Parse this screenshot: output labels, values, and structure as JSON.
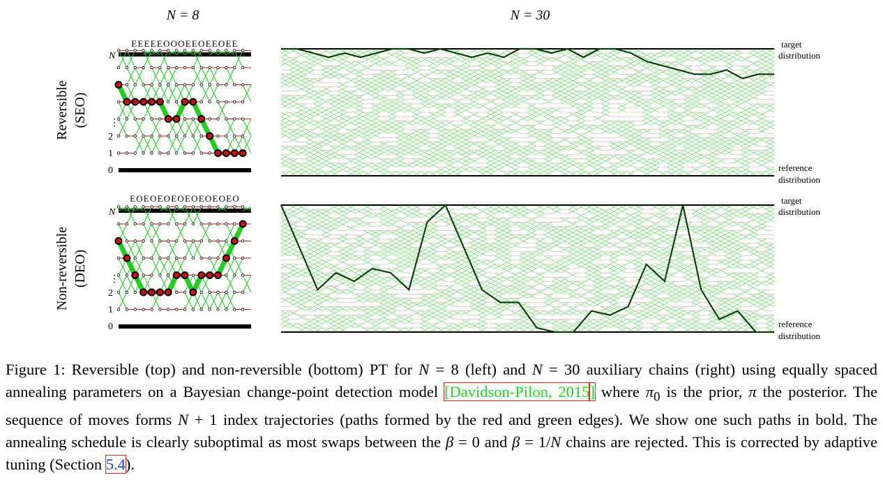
{
  "headers": {
    "left": "N = 8",
    "right": "N = 30"
  },
  "rows": [
    {
      "label_line1": "Reversible",
      "label_line2": "(SEO)",
      "sequence": "EEEEEOOOEEOEEOEE"
    },
    {
      "label_line1": "Non-reversible",
      "label_line2": "(DEO)",
      "sequence": "EOEOEOEOEOEOEOEO"
    }
  ],
  "axis_labels": {
    "n": "N",
    "dots": "⋮",
    "two": "2",
    "one": "1",
    "zero": "0"
  },
  "right_labels": {
    "target_line1": "target",
    "target_line2": "distribution",
    "reference_line1": "reference",
    "reference_line2": "distribution"
  },
  "colors": {
    "green": "#22cc22",
    "red": "#cc1111",
    "black": "#000000"
  },
  "chart_data": [
    {
      "type": "line",
      "title": "N = 8, Reversible (SEO)",
      "series": [
        {
          "values": [
            5,
            4,
            4,
            4,
            4,
            4,
            3,
            3,
            4,
            4,
            3,
            2,
            1,
            1,
            1,
            1
          ]
        }
      ]
    },
    {
      "type": "line",
      "title": "N = 8, Non-reversible (DEO)",
      "series": [
        {
          "values": [
            5,
            4,
            3,
            2,
            2,
            2,
            2,
            3,
            3,
            2,
            3,
            3,
            3,
            4,
            5,
            6
          ]
        }
      ]
    },
    {
      "type": "line",
      "title": "N = 30, Reversible (SEO)",
      "series": [
        {
          "values": [
            30,
            30,
            29,
            28,
            29,
            28,
            29,
            30,
            30,
            29,
            30,
            29,
            28,
            29,
            28,
            30,
            30,
            29,
            30,
            28,
            30,
            30,
            29,
            27,
            26,
            25,
            24,
            24,
            25,
            23,
            24,
            24
          ]
        }
      ]
    },
    {
      "type": "line",
      "title": "N = 30, Non-reversible (DEO)",
      "series": [
        {
          "values": [
            30,
            20,
            10,
            14,
            12,
            15,
            14,
            10,
            26,
            30,
            20,
            10,
            7,
            7,
            1,
            0,
            0,
            5,
            4,
            6,
            16,
            12,
            30,
            10,
            3,
            5,
            0,
            0
          ]
        }
      ]
    }
  ],
  "caption": {
    "t1": "Figure 1: Reversible (top) and non-reversible (bottom) PT for ",
    "m_N8": "N",
    "m_eq8": " = 8",
    "t2": " (left) and ",
    "m_N30": "N",
    "m_eq30": " = 30",
    "t3": " auxiliary chains (right) using equally spaced annealing parameters on a Bayesian change-point detection model ",
    "cite_open": "[",
    "cite": "Davidson-Pilon, 2015",
    "cite_close": "]",
    "t4": " where ",
    "m_pi0": "π",
    "m_pi0_sub": "0",
    "t5": " is the prior, ",
    "m_pi": "π",
    "t6": " the posterior. The sequence of moves forms ",
    "m_Np1": "N",
    "m_p1": " + 1",
    "t7": " index trajectories (paths formed by the red and green edges). We show one such paths in bold. The annealing schedule is clearly suboptimal as most swaps between the ",
    "m_beta1": "β",
    "m_eq0": " = 0",
    "t8": " and ",
    "m_beta2": "β",
    "m_eq1": " = 1/",
    "m_N2": "N",
    "t9": " chains are rejected. This is corrected by adaptive tuning (Section ",
    "ref": "5.4",
    "t10": ")."
  }
}
